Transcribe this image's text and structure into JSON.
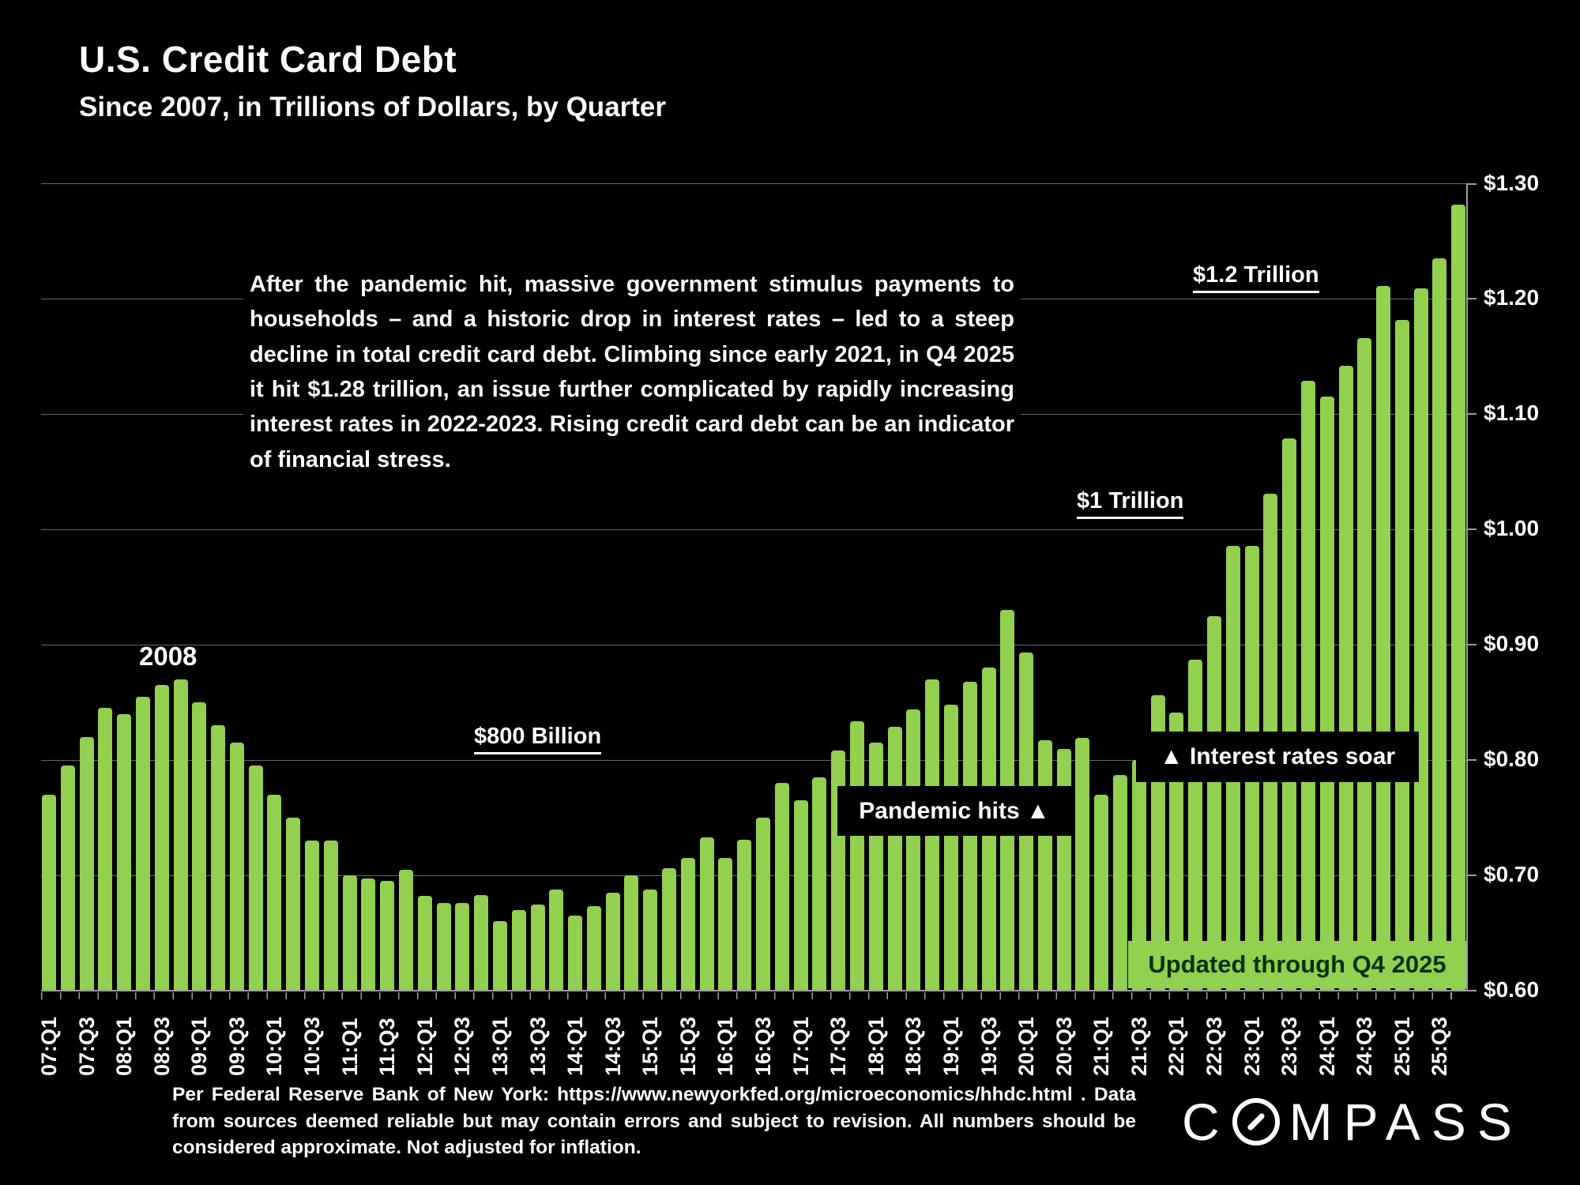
{
  "header": {
    "title": "U.S. Credit Card Debt",
    "subtitle": "Since 2007, in Trillions of Dollars, by Quarter"
  },
  "annotation": "After the pandemic hit, massive government stimulus payments to households – and a historic drop in interest rates – led to a steep decline in total credit card debt. Climbing since early 2021, in Q4 2025 it hit $1.28 trillion, an issue further complicated by rapidly increasing interest rates in 2022-2023. Rising credit card debt can be an indicator of financial stress.",
  "callouts": {
    "year_2008": "2008",
    "b800": "$800 Billion",
    "t1": "$1 Trillion",
    "t12": "$1.2 Trillion",
    "pandemic": "Pandemic hits ▲",
    "interest": "▲ Interest rates soar",
    "updated": "Updated through Q4 2025"
  },
  "footer": {
    "text": "Per Federal Reserve Bank of New York: https://www.newyorkfed.org/microeconomics/hhdc.html . Data from sources deemed reliable but may contain errors and subject to revision. All numbers should be considered approximate. Not adjusted for inflation."
  },
  "logo": {
    "before": "C",
    "after": "MPASS",
    "name": "COMPASS"
  },
  "colors": {
    "background": "#000000",
    "bar": "#92d050",
    "grid": "#676767",
    "axis": "#9d9d9d",
    "text": "#ffffff",
    "updated_box_bg": "#92d050",
    "updated_box_text": "#0b2e0b"
  },
  "chart_data": {
    "type": "bar",
    "title": "U.S. Credit Card Debt",
    "subtitle": "Since 2007, in Trillions of Dollars, by Quarter",
    "units": "Trillions of Dollars",
    "ylim": [
      0.6,
      1.3
    ],
    "y_ticks": [
      0.6,
      0.7,
      0.8,
      0.9,
      1.0,
      1.1,
      1.2,
      1.3
    ],
    "grid": true,
    "bar_color": "#92d050",
    "x": [
      "07:Q1",
      "07:Q2",
      "07:Q3",
      "07:Q4",
      "08:Q1",
      "08:Q2",
      "08:Q3",
      "08:Q4",
      "09:Q1",
      "09:Q2",
      "09:Q3",
      "09:Q4",
      "10:Q1",
      "10:Q2",
      "10:Q3",
      "10:Q4",
      "11:Q1",
      "11:Q2",
      "11:Q3",
      "11:Q4",
      "12:Q1",
      "12:Q2",
      "12:Q3",
      "12:Q4",
      "13:Q1",
      "13:Q2",
      "13:Q3",
      "13:Q4",
      "14:Q1",
      "14:Q2",
      "14:Q3",
      "14:Q4",
      "15:Q1",
      "15:Q2",
      "15:Q3",
      "15:Q4",
      "16:Q1",
      "16:Q2",
      "16:Q3",
      "16:Q4",
      "17:Q1",
      "17:Q2",
      "17:Q3",
      "17:Q4",
      "18:Q1",
      "18:Q2",
      "18:Q3",
      "18:Q4",
      "19:Q1",
      "19:Q2",
      "19:Q3",
      "19:Q4",
      "20:Q1",
      "20:Q2",
      "20:Q3",
      "20:Q4",
      "21:Q1",
      "21:Q2",
      "21:Q3",
      "21:Q4",
      "22:Q1",
      "22:Q2",
      "22:Q3",
      "22:Q4",
      "23:Q1",
      "23:Q2",
      "23:Q3",
      "23:Q4",
      "24:Q1",
      "24:Q2",
      "24:Q3",
      "24:Q4",
      "25:Q1",
      "25:Q2",
      "25:Q3",
      "25:Q4"
    ],
    "values": [
      0.77,
      0.795,
      0.82,
      0.845,
      0.84,
      0.855,
      0.865,
      0.87,
      0.85,
      0.83,
      0.815,
      0.795,
      0.77,
      0.75,
      0.73,
      0.73,
      0.7,
      0.697,
      0.695,
      0.705,
      0.682,
      0.676,
      0.676,
      0.683,
      0.66,
      0.67,
      0.675,
      0.688,
      0.665,
      0.673,
      0.685,
      0.7,
      0.688,
      0.706,
      0.715,
      0.733,
      0.715,
      0.731,
      0.75,
      0.78,
      0.765,
      0.785,
      0.808,
      0.834,
      0.815,
      0.829,
      0.844,
      0.87,
      0.848,
      0.868,
      0.88,
      0.93,
      0.893,
      0.817,
      0.81,
      0.819,
      0.77,
      0.787,
      0.8,
      0.856,
      0.841,
      0.887,
      0.925,
      0.986,
      0.986,
      1.031,
      1.079,
      1.129,
      1.115,
      1.142,
      1.166,
      1.211,
      1.182,
      1.209,
      1.235,
      1.282
    ],
    "x_tick_labels": [
      "07:Q1",
      "07:Q3",
      "08:Q1",
      "08:Q3",
      "09:Q1",
      "09:Q3",
      "10:Q1",
      "10:Q3",
      "11:Q1",
      "11:Q3",
      "12:Q1",
      "12:Q3",
      "13:Q1",
      "13:Q3",
      "14:Q1",
      "14:Q3",
      "15:Q1",
      "15:Q3",
      "16:Q1",
      "16:Q3",
      "17:Q1",
      "17:Q3",
      "18:Q1",
      "18:Q3",
      "19:Q1",
      "19:Q3",
      "20:Q1",
      "20:Q3",
      "21:Q1",
      "21:Q3",
      "22:Q1",
      "22:Q3",
      "23:Q1",
      "23:Q3",
      "24:Q1",
      "24:Q3",
      "25:Q1",
      "25:Q3"
    ],
    "annotations": [
      "2008",
      "$800 Billion",
      "$1 Trillion",
      "$1.2 Trillion",
      "Pandemic hits ▲",
      "▲ Interest rates soar",
      "Updated through Q4 2025"
    ],
    "legend": null,
    "legend_position": "none"
  }
}
